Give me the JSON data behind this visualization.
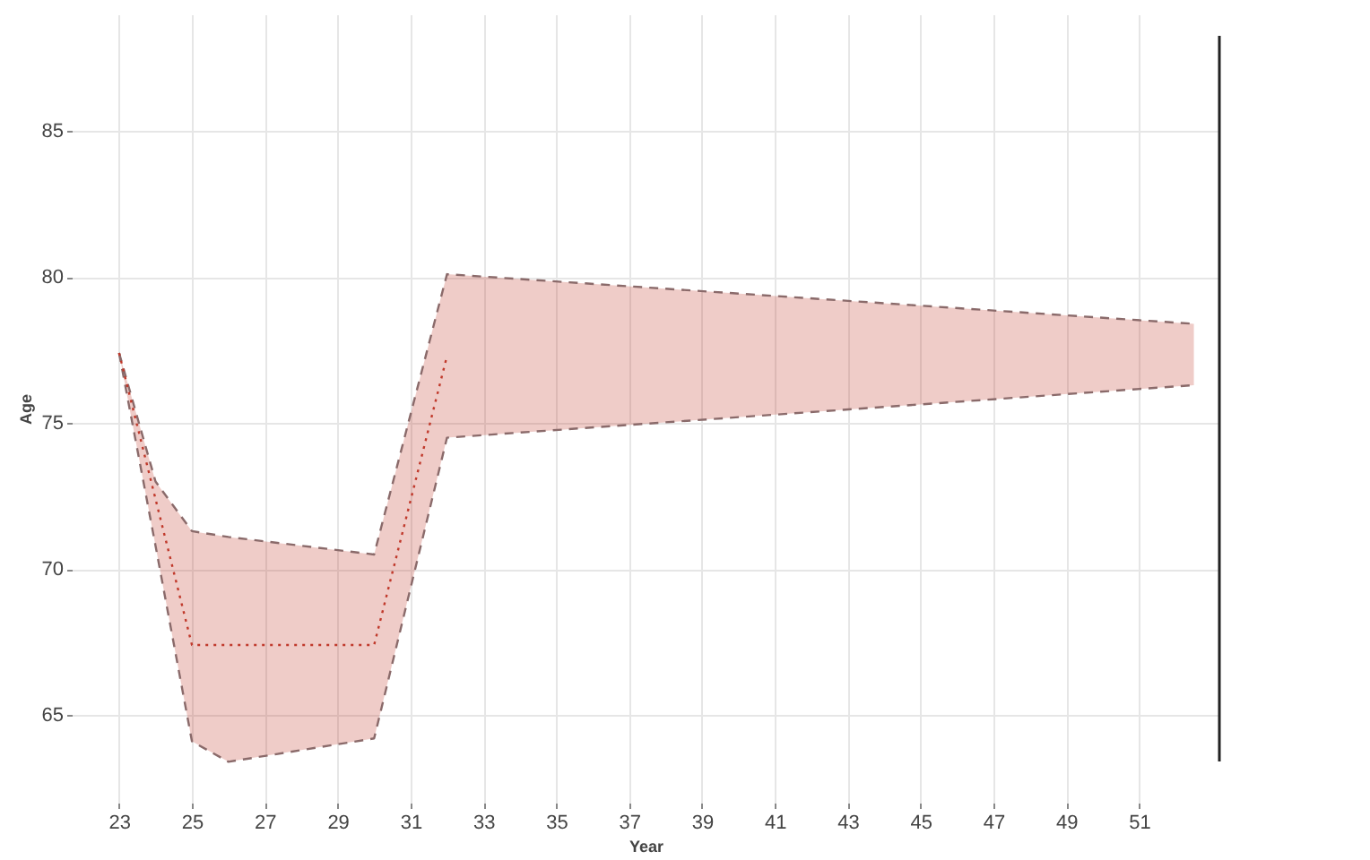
{
  "chart_data": {
    "type": "line",
    "xlabel": "Year",
    "ylabel": "Age",
    "series": [
      {
        "color": "#8a6a6a",
        "line_style": "dashed",
        "x": [
          23,
          24,
          25,
          26,
          30,
          32,
          52.5
        ],
        "values": [
          77.4,
          73.0,
          71.3,
          71.1,
          70.5,
          80.1,
          78.4
        ]
      },
      {
        "color": "#8a6a6a",
        "line_style": "dashed",
        "x": [
          23,
          24,
          25,
          26,
          30,
          32,
          52.5
        ],
        "values": [
          77.4,
          70.8,
          64.1,
          63.4,
          64.2,
          74.5,
          76.3
        ]
      },
      {
        "color": "#c0392b",
        "line_style": "dotted",
        "x": [
          23,
          24,
          25,
          26,
          30,
          32,
          52.5
        ],
        "values": [
          77.4,
          72.4,
          67.4,
          67.4,
          67.4,
          77.3,
          null
        ],
        "lower": [
          77.4,
          70.8,
          64.1,
          63.4,
          64.2,
          74.5,
          76.3
        ],
        "upper": [
          77.4,
          73.0,
          71.3,
          71.1,
          70.5,
          80.1,
          78.4
        ]
      }
    ],
    "xlim": [
      21.7,
      53.2
    ],
    "xticks": [
      23,
      25,
      27,
      29,
      31,
      33,
      35,
      37,
      39,
      41,
      43,
      45,
      47,
      49,
      51
    ],
    "ylim": [
      62,
      89
    ],
    "yticks": [
      65,
      70,
      75,
      80,
      85
    ],
    "grid": true
  }
}
